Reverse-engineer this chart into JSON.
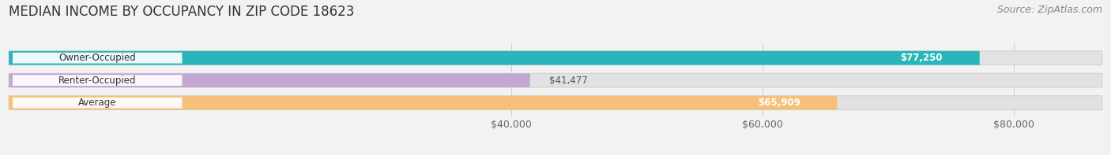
{
  "title": "MEDIAN INCOME BY OCCUPANCY IN ZIP CODE 18623",
  "source": "Source: ZipAtlas.com",
  "categories": [
    "Owner-Occupied",
    "Renter-Occupied",
    "Average"
  ],
  "values": [
    77250,
    41477,
    65909
  ],
  "bar_colors": [
    "#29b5ba",
    "#c4a8d4",
    "#f5c07a"
  ],
  "bar_labels": [
    "$77,250",
    "$41,477",
    "$65,909"
  ],
  "label_text_color_inside": [
    "white",
    "black",
    "white"
  ],
  "xlim_start": 0,
  "xlim_end": 87000,
  "xticks": [
    40000,
    60000,
    80000
  ],
  "xtick_labels": [
    "$40,000",
    "$60,000",
    "$80,000"
  ],
  "background_color": "#f2f2f2",
  "bar_background_color": "#e2e2e2",
  "title_fontsize": 12,
  "source_fontsize": 9,
  "label_fontsize": 8.5,
  "tick_fontsize": 9,
  "bar_height": 0.62,
  "bar_gap": 0.38
}
